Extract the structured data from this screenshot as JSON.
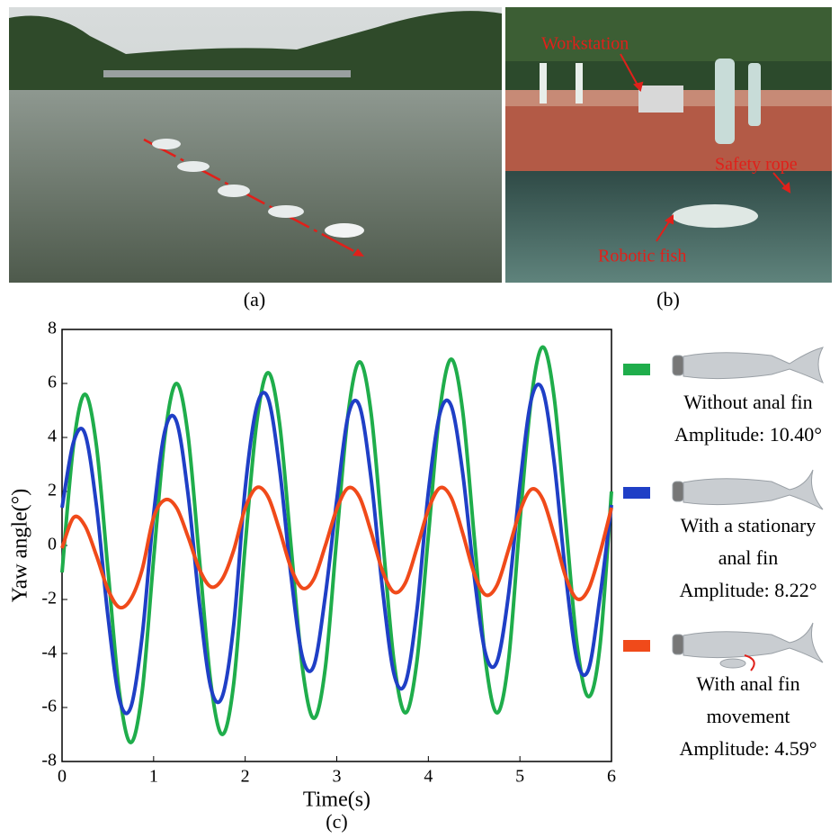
{
  "figure": {
    "panels": [
      {
        "caption": "(a)"
      },
      {
        "caption": "(b)",
        "labels": [
          "Workstation",
          "Safety rope",
          "Robotic fish"
        ]
      }
    ]
  },
  "chart_data": {
    "type": "line",
    "caption": "(c)",
    "x_label": "Time(s)",
    "y_label": "Yaw angle(°)",
    "x": [
      0,
      0.125,
      0.25,
      0.375,
      0.5,
      0.625,
      0.75,
      0.875,
      1,
      1.125,
      1.25,
      1.375,
      1.5,
      1.625,
      1.75,
      1.875,
      2,
      2.125,
      2.25,
      2.375,
      2.5,
      2.625,
      2.75,
      2.875,
      3,
      3.125,
      3.25,
      3.375,
      3.5,
      3.625,
      3.75,
      3.875,
      4,
      4.125,
      4.25,
      4.375,
      4.5,
      4.625,
      4.75,
      4.875,
      5,
      5.125,
      5.25,
      5.375,
      5.5,
      5.625,
      5.75,
      5.875,
      6
    ],
    "series": [
      {
        "name": "Without anal fin",
        "annotation": "Amplitude: 10.40°",
        "color": "#1fad4b",
        "values": [
          -1,
          3.71,
          5.6,
          3.71,
          -0.85,
          -5.41,
          -7.3,
          -5.41,
          -0.5,
          4.1,
          6.0,
          4.1,
          -0.5,
          -5.1,
          -7.0,
          -5.1,
          0,
          4.53,
          6.4,
          4.53,
          0,
          -4.53,
          -6.4,
          -4.53,
          0.3,
          4.9,
          6.8,
          4.9,
          0.3,
          -4.3,
          -6.2,
          -4.3,
          0.35,
          4.98,
          6.9,
          4.98,
          0.35,
          -4.28,
          -6.2,
          -4.28,
          0.88,
          5.46,
          7.35,
          5.46,
          0.88,
          -3.7,
          -5.6,
          -3.7,
          2.0
        ]
      },
      {
        "name": "With a stationary anal fin",
        "annotation": "Amplitude: 8.22°",
        "color": "#1f3fc6",
        "values": [
          1.4,
          3.82,
          4.14,
          1.49,
          -2.58,
          -5.68,
          -6.0,
          -3.35,
          1.15,
          4.27,
          4.59,
          1.93,
          -2.15,
          -5.27,
          -5.59,
          -2.93,
          2.11,
          5.13,
          5.45,
          2.86,
          -1.11,
          -4.13,
          -4.45,
          -1.86,
          1.69,
          4.82,
          5.15,
          2.47,
          -1.63,
          -4.76,
          -5.09,
          -2.41,
          1.97,
          4.87,
          5.17,
          2.69,
          -1.11,
          -4.01,
          -4.3,
          -1.83,
          2.26,
          5.42,
          5.74,
          3.05,
          -1.1,
          -4.26,
          -4.58,
          -1.89,
          1.5
        ]
      },
      {
        "name": "With anal fin movement",
        "annotation": "Amplitude: 4.59°",
        "color": "#f04a1a",
        "values": [
          -0.1,
          1.03,
          0.73,
          -0.37,
          -1.62,
          -2.29,
          -1.99,
          -0.89,
          1.04,
          1.69,
          1.4,
          0.33,
          -0.88,
          -1.53,
          -1.24,
          -0.17,
          1.38,
          2.14,
          1.8,
          0.57,
          -0.83,
          -1.58,
          -1.24,
          -0.01,
          1.35,
          2.13,
          1.78,
          0.5,
          -0.95,
          -1.73,
          -1.38,
          -0.1,
          1.33,
          2.13,
          1.77,
          0.46,
          -1.03,
          -1.83,
          -1.47,
          -0.16,
          1.26,
          2.08,
          1.71,
          0.37,
          -1.16,
          -1.98,
          -1.61,
          -0.27,
          1.4
        ]
      }
    ],
    "xlim": [
      0,
      6
    ],
    "ylim": [
      -8,
      8
    ],
    "xticks": [
      0,
      1,
      2,
      3,
      4,
      5,
      6
    ],
    "yticks": [
      -8,
      -6,
      -4,
      -2,
      0,
      2,
      4,
      6,
      8
    ],
    "grid": false
  }
}
